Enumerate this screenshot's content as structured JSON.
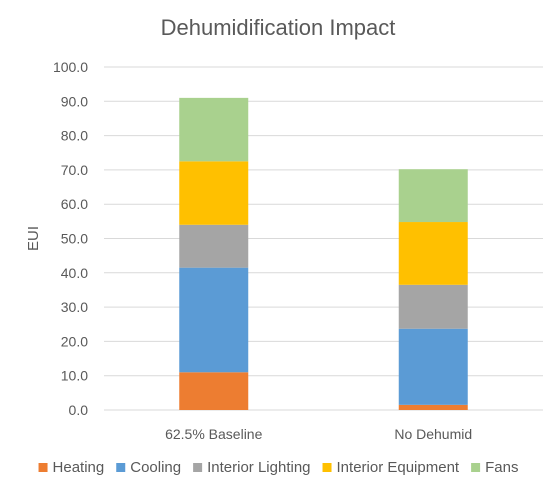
{
  "chart_data": {
    "type": "bar",
    "stacked": true,
    "title": "Dehumidification Impact",
    "xlabel": "",
    "ylabel": "EUI",
    "ylim": [
      0,
      100
    ],
    "y_ticks": [
      "0.0",
      "10.0",
      "20.0",
      "30.0",
      "40.0",
      "50.0",
      "60.0",
      "70.0",
      "80.0",
      "90.0",
      "100.0"
    ],
    "categories": [
      "62.5% Baseline",
      "No Dehumid"
    ],
    "grid": true,
    "legend_position": "bottom",
    "series": [
      {
        "name": "Heating",
        "color": "#ED7D31",
        "values": [
          11.0,
          1.5
        ]
      },
      {
        "name": "Cooling",
        "color": "#5B9BD5",
        "values": [
          30.5,
          22.2
        ]
      },
      {
        "name": "Interior Lighting",
        "color": "#A5A5A5",
        "values": [
          12.5,
          12.8
        ]
      },
      {
        "name": "Interior Equipment",
        "color": "#FFC000",
        "values": [
          18.5,
          18.3
        ]
      },
      {
        "name": "Fans",
        "color": "#A9D18E",
        "values": [
          18.5,
          15.4
        ]
      }
    ]
  }
}
